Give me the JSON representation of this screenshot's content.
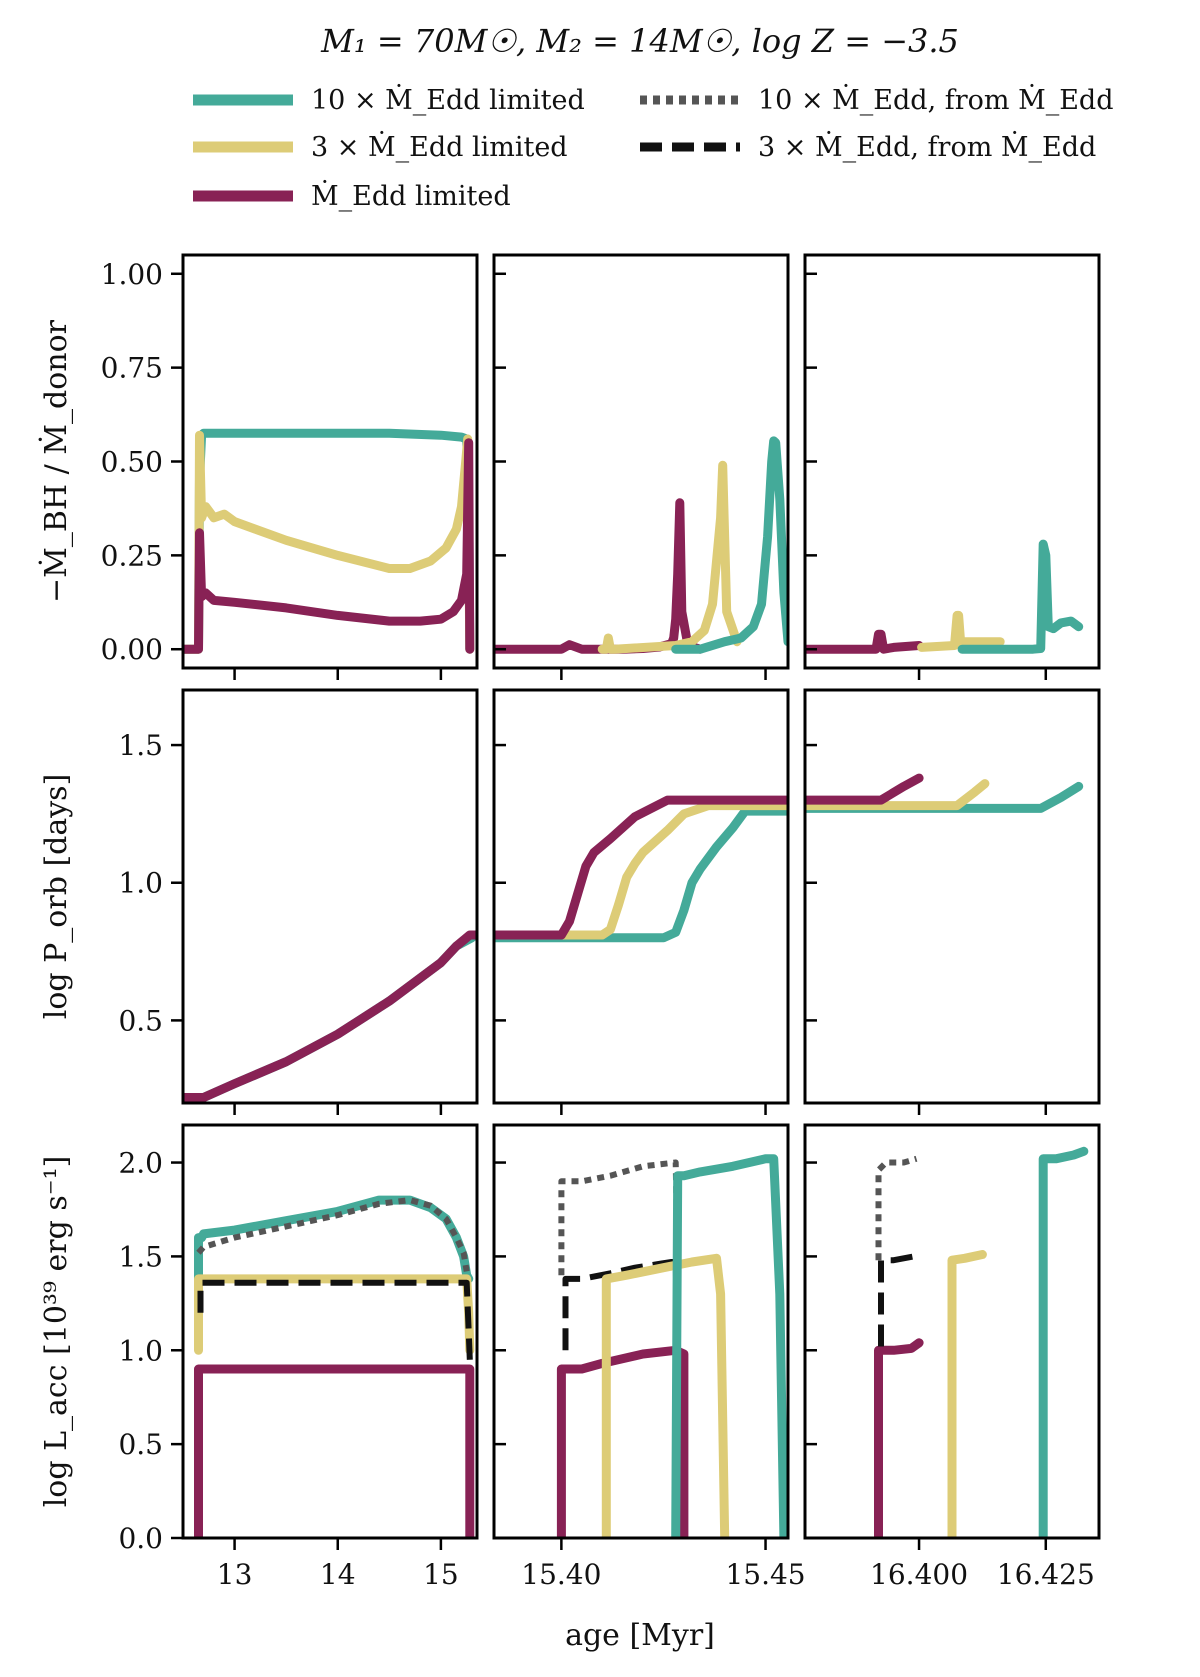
{
  "chart_data": {
    "type": "line",
    "title": "M₁ = 70M☉, M₂ = 14M☉, log Z = −3.5",
    "xlabel": "age [Myr]",
    "legend": {
      "placement": "top",
      "entries": [
        {
          "key": "s10",
          "label": "10 × Ṁ_Edd limited",
          "color": "#44AA99",
          "style": "solid"
        },
        {
          "key": "s3",
          "label": "3 × Ṁ_Edd limited",
          "color": "#DDCC77",
          "style": "solid"
        },
        {
          "key": "s1",
          "label": "Ṁ_Edd limited",
          "color": "#882255",
          "style": "solid"
        },
        {
          "key": "d10",
          "label": "10 × Ṁ_Edd, from Ṁ_Edd",
          "color": "#555555",
          "style": "dotted"
        },
        {
          "key": "d3",
          "label": "3 × Ṁ_Edd, from Ṁ_Edd",
          "color": "#111111",
          "style": "dashed"
        }
      ]
    },
    "columns": [
      {
        "xlim": [
          12.5,
          15.35
        ],
        "xticks": [
          13,
          14,
          15
        ],
        "xticklabels": [
          "13",
          "14",
          "15"
        ]
      },
      {
        "xlim": [
          15.3835,
          15.4555
        ],
        "xticks": [
          15.4,
          15.45
        ],
        "xticklabels": [
          "15.40",
          "15.45"
        ]
      },
      {
        "xlim": [
          16.3775,
          16.4355
        ],
        "xticks": [
          16.4,
          16.425
        ],
        "xticklabels": [
          "16.400",
          "16.425"
        ]
      }
    ],
    "rows": [
      {
        "ylabel": "−Ṁ_BH / Ṁ_donor",
        "ylim": [
          -0.05,
          1.05
        ],
        "yticks": [
          0,
          0.25,
          0.5,
          0.75,
          1.0
        ],
        "yticklabels": [
          "0.00",
          "0.25",
          "0.50",
          "0.75",
          "1.00"
        ]
      },
      {
        "ylabel": "log P_orb [days]",
        "ylim": [
          0.2,
          1.7
        ],
        "yticks": [
          0.5,
          1.0,
          1.5
        ],
        "yticklabels": [
          "0.5",
          "1.0",
          "1.5"
        ]
      },
      {
        "ylabel": "log L_acc [10³⁹ erg s⁻¹]",
        "ylim": [
          0.0,
          2.2
        ],
        "yticks": [
          0.0,
          0.5,
          1.0,
          1.5,
          2.0
        ],
        "yticklabels": [
          "0.0",
          "0.5",
          "1.0",
          "1.5",
          "2.0"
        ]
      }
    ],
    "series": [
      {
        "row": 0,
        "col": 0,
        "key": "s10",
        "x": [
          12.5,
          12.65,
          12.66,
          12.68,
          12.7,
          13,
          14,
          14.5,
          15,
          15.2,
          15.25,
          15.27,
          15.28
        ],
        "y": [
          0,
          0,
          0.45,
          0.57,
          0.575,
          0.575,
          0.575,
          0.575,
          0.57,
          0.565,
          0.56,
          0.4,
          0
        ]
      },
      {
        "row": 0,
        "col": 0,
        "key": "s3",
        "x": [
          12.5,
          12.65,
          12.66,
          12.68,
          12.72,
          12.8,
          12.9,
          13,
          13.2,
          13.5,
          14,
          14.5,
          14.7,
          14.9,
          15.05,
          15.15,
          15.2,
          15.24,
          15.26,
          15.28
        ],
        "y": [
          0,
          0,
          0.57,
          0.35,
          0.38,
          0.35,
          0.36,
          0.34,
          0.32,
          0.29,
          0.25,
          0.215,
          0.215,
          0.235,
          0.27,
          0.32,
          0.38,
          0.5,
          0.56,
          0
        ]
      },
      {
        "row": 0,
        "col": 0,
        "key": "s1",
        "x": [
          12.5,
          12.65,
          12.66,
          12.68,
          12.72,
          12.8,
          13,
          13.5,
          14,
          14.5,
          14.8,
          15,
          15.12,
          15.2,
          15.25,
          15.27,
          15.28
        ],
        "y": [
          0,
          0,
          0.31,
          0.14,
          0.15,
          0.13,
          0.125,
          0.11,
          0.09,
          0.075,
          0.075,
          0.08,
          0.1,
          0.13,
          0.2,
          0.55,
          0
        ]
      },
      {
        "row": 0,
        "col": 1,
        "key": "s1",
        "x": [
          15.3835,
          15.4,
          15.402,
          15.405,
          15.415,
          15.42,
          15.424,
          15.427,
          15.4275,
          15.428,
          15.4285,
          15.429,
          15.4295,
          15.431,
          15.434
        ],
        "y": [
          0,
          0,
          0.012,
          0,
          0,
          0.002,
          0.006,
          0.015,
          0.03,
          0.08,
          0.2,
          0.39,
          0.1,
          0.01,
          0
        ]
      },
      {
        "row": 0,
        "col": 1,
        "key": "s3",
        "x": [
          15.41,
          15.411,
          15.4115,
          15.412,
          15.413,
          15.428,
          15.432,
          15.435,
          15.437,
          15.439,
          15.4395,
          15.4405,
          15.443
        ],
        "y": [
          0,
          0,
          0.03,
          0,
          0,
          0.01,
          0.02,
          0.05,
          0.12,
          0.35,
          0.49,
          0.1,
          0.02
        ]
      },
      {
        "row": 0,
        "col": 1,
        "key": "s10",
        "x": [
          15.428,
          15.434,
          15.44,
          15.444,
          15.447,
          15.449,
          15.4505,
          15.4515,
          15.452,
          15.4525,
          15.4535,
          15.4545,
          15.4555
        ],
        "y": [
          0.0,
          0.0,
          0.02,
          0.03,
          0.06,
          0.12,
          0.3,
          0.5,
          0.555,
          0.55,
          0.4,
          0.15,
          0.02
        ]
      },
      {
        "row": 0,
        "col": 2,
        "key": "s1",
        "x": [
          16.3775,
          16.3915,
          16.392,
          16.3925,
          16.393,
          16.395,
          16.4
        ],
        "y": [
          0,
          0,
          0.04,
          0.04,
          0,
          0.005,
          0.01
        ]
      },
      {
        "row": 0,
        "col": 2,
        "key": "s3",
        "x": [
          16.4005,
          16.407,
          16.4075,
          16.4078,
          16.4082,
          16.4085,
          16.413,
          16.416
        ],
        "y": [
          0.005,
          0.01,
          0.09,
          0.09,
          0.02,
          0.02,
          0.02,
          0.02
        ]
      },
      {
        "row": 0,
        "col": 2,
        "key": "s10",
        "x": [
          16.4085,
          16.4225,
          16.424,
          16.4245,
          16.425,
          16.4255,
          16.4265,
          16.428,
          16.43,
          16.4315
        ],
        "y": [
          0.0,
          0.0,
          0.002,
          0.28,
          0.25,
          0.06,
          0.055,
          0.07,
          0.075,
          0.06
        ]
      },
      {
        "row": 1,
        "col": 0,
        "key": "s10",
        "x": [
          12.5,
          12.7,
          13,
          13.5,
          14,
          14.5,
          15,
          15.15,
          15.3
        ],
        "y": [
          0.22,
          0.22,
          0.27,
          0.35,
          0.45,
          0.57,
          0.71,
          0.77,
          0.8
        ]
      },
      {
        "row": 1,
        "col": 0,
        "key": "s1",
        "x": [
          12.5,
          12.7,
          13,
          13.5,
          14,
          14.5,
          15,
          15.15,
          15.28,
          15.35
        ],
        "y": [
          0.22,
          0.22,
          0.27,
          0.35,
          0.45,
          0.57,
          0.71,
          0.77,
          0.81,
          0.81
        ]
      },
      {
        "row": 1,
        "col": 1,
        "key": "s10",
        "x": [
          15.3835,
          15.425,
          15.428,
          15.43,
          15.432,
          15.434,
          15.438,
          15.442,
          15.445,
          15.4555
        ],
        "y": [
          0.8,
          0.8,
          0.82,
          0.9,
          1.0,
          1.05,
          1.13,
          1.2,
          1.26,
          1.26
        ]
      },
      {
        "row": 1,
        "col": 1,
        "key": "s3",
        "x": [
          15.3835,
          15.41,
          15.412,
          15.414,
          15.416,
          15.418,
          15.42,
          15.426,
          15.43,
          15.436,
          15.4555
        ],
        "y": [
          0.81,
          0.81,
          0.83,
          0.92,
          1.02,
          1.07,
          1.11,
          1.19,
          1.25,
          1.28,
          1.28
        ]
      },
      {
        "row": 1,
        "col": 1,
        "key": "s1",
        "x": [
          15.3835,
          15.4,
          15.402,
          15.404,
          15.406,
          15.408,
          15.412,
          15.418,
          15.426,
          15.432,
          15.4555
        ],
        "y": [
          0.81,
          0.81,
          0.86,
          0.96,
          1.06,
          1.11,
          1.16,
          1.24,
          1.3,
          1.3,
          1.3
        ]
      },
      {
        "row": 1,
        "col": 2,
        "key": "s10",
        "x": [
          16.3775,
          16.424,
          16.428,
          16.4315
        ],
        "y": [
          1.27,
          1.27,
          1.31,
          1.35
        ]
      },
      {
        "row": 1,
        "col": 2,
        "key": "s3",
        "x": [
          16.3775,
          16.4075,
          16.411,
          16.413
        ],
        "y": [
          1.28,
          1.28,
          1.33,
          1.36
        ]
      },
      {
        "row": 1,
        "col": 2,
        "key": "s1",
        "x": [
          16.3775,
          16.3925,
          16.397,
          16.4
        ],
        "y": [
          1.3,
          1.3,
          1.35,
          1.38
        ]
      },
      {
        "row": 2,
        "col": 0,
        "key": "s10",
        "x": [
          12.65,
          12.65,
          12.68,
          12.7,
          13,
          13.5,
          14,
          14.4,
          14.7,
          14.9,
          15.05,
          15.15,
          15.22,
          15.25,
          15.27
        ],
        "y": [
          1.38,
          1.6,
          1.6,
          1.62,
          1.64,
          1.69,
          1.74,
          1.8,
          1.8,
          1.76,
          1.7,
          1.6,
          1.5,
          1.4,
          1.38
        ]
      },
      {
        "row": 2,
        "col": 0,
        "key": "d10",
        "x": [
          12.65,
          12.7,
          13,
          13.5,
          14,
          14.4,
          14.7,
          14.9,
          15.05,
          15.15,
          15.22,
          15.25
        ],
        "y": [
          1.52,
          1.55,
          1.6,
          1.66,
          1.72,
          1.78,
          1.8,
          1.77,
          1.7,
          1.6,
          1.52,
          1.42
        ]
      },
      {
        "row": 2,
        "col": 0,
        "key": "s3",
        "x": [
          12.65,
          12.65,
          12.68,
          13,
          14,
          15,
          15.25,
          15.27,
          15.28
        ],
        "y": [
          1.0,
          1.38,
          1.38,
          1.38,
          1.38,
          1.38,
          1.38,
          1.2,
          1.0
        ]
      },
      {
        "row": 2,
        "col": 0,
        "key": "d3",
        "x": [
          12.67,
          12.67,
          12.7,
          13,
          14,
          15,
          15.25,
          15.27,
          15.28
        ],
        "y": [
          1.2,
          1.36,
          1.36,
          1.36,
          1.36,
          1.36,
          1.36,
          1.1,
          0.95
        ]
      },
      {
        "row": 2,
        "col": 0,
        "key": "s1",
        "x": [
          12.65,
          12.65,
          12.68,
          13,
          14,
          15,
          15.27,
          15.28,
          15.28
        ],
        "y": [
          0.0,
          0.9,
          0.9,
          0.9,
          0.9,
          0.9,
          0.9,
          0.9,
          0.0
        ]
      },
      {
        "row": 2,
        "col": 1,
        "key": "s1",
        "x": [
          15.4,
          15.4,
          15.405,
          15.41,
          15.42,
          15.428,
          15.43,
          15.43
        ],
        "y": [
          0.0,
          0.9,
          0.9,
          0.93,
          0.98,
          1.0,
          0.98,
          0.0
        ]
      },
      {
        "row": 2,
        "col": 1,
        "key": "d3",
        "x": [
          15.401,
          15.401,
          15.405,
          15.412,
          15.418,
          15.424,
          15.427,
          15.428,
          15.4285
        ],
        "y": [
          1.0,
          1.38,
          1.38,
          1.41,
          1.44,
          1.46,
          1.47,
          1.47,
          0.9
        ]
      },
      {
        "row": 2,
        "col": 1,
        "key": "s3",
        "x": [
          15.411,
          15.411,
          15.416,
          15.425,
          15.432,
          15.438,
          15.439,
          15.44
        ],
        "y": [
          0.0,
          1.38,
          1.4,
          1.44,
          1.47,
          1.49,
          1.3,
          0.0
        ]
      },
      {
        "row": 2,
        "col": 1,
        "key": "d10",
        "x": [
          15.4,
          15.4,
          15.405,
          15.412,
          15.42,
          15.428,
          15.4285
        ],
        "y": [
          1.4,
          1.9,
          1.9,
          1.93,
          1.98,
          2.0,
          1.4
        ]
      },
      {
        "row": 2,
        "col": 1,
        "key": "s10",
        "x": [
          15.428,
          15.4285,
          15.43,
          15.434,
          15.442,
          15.45,
          15.452,
          15.4535,
          15.4545
        ],
        "y": [
          0.0,
          1.93,
          1.93,
          1.95,
          1.98,
          2.02,
          2.02,
          1.3,
          0.0
        ]
      },
      {
        "row": 2,
        "col": 2,
        "key": "s1",
        "x": [
          16.392,
          16.392,
          16.395,
          16.3985,
          16.4
        ],
        "y": [
          0.0,
          1.0,
          1.0,
          1.01,
          1.04
        ]
      },
      {
        "row": 2,
        "col": 2,
        "key": "d3",
        "x": [
          16.3925,
          16.3925,
          16.395,
          16.399
        ],
        "y": [
          1.02,
          1.48,
          1.48,
          1.5
        ]
      },
      {
        "row": 2,
        "col": 2,
        "key": "d10",
        "x": [
          16.392,
          16.392,
          16.3935,
          16.397,
          16.3995
        ],
        "y": [
          1.48,
          1.96,
          2.0,
          2.0,
          2.02
        ]
      },
      {
        "row": 2,
        "col": 2,
        "key": "s3",
        "x": [
          16.4065,
          16.4065,
          16.409,
          16.4125
        ],
        "y": [
          0.0,
          1.48,
          1.49,
          1.51
        ]
      },
      {
        "row": 2,
        "col": 2,
        "key": "s10",
        "x": [
          16.4245,
          16.4245,
          16.427,
          16.4305,
          16.4325
        ],
        "y": [
          0.0,
          2.02,
          2.02,
          2.04,
          2.06
        ]
      }
    ]
  }
}
